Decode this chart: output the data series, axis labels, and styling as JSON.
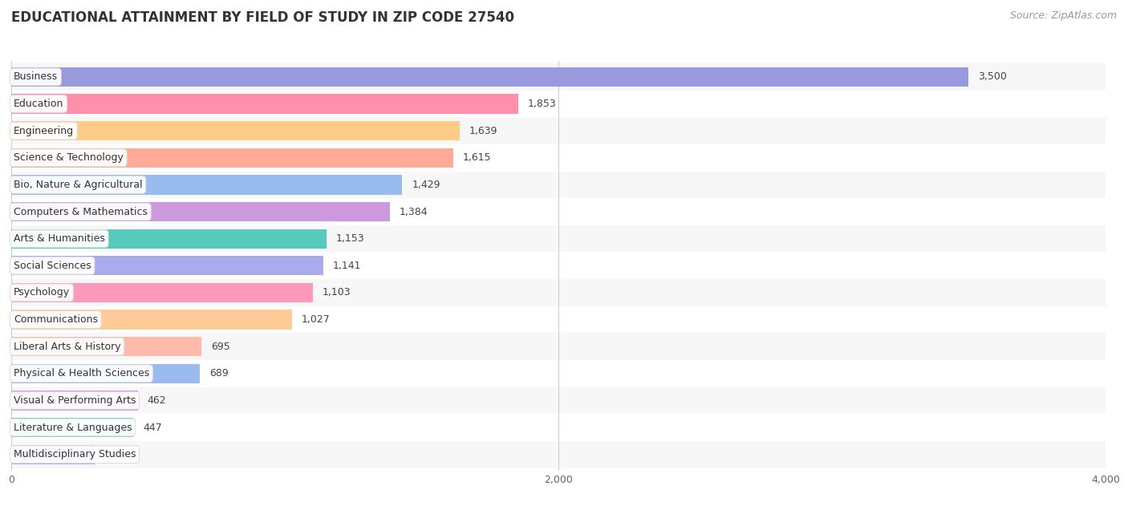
{
  "title": "EDUCATIONAL ATTAINMENT BY FIELD OF STUDY IN ZIP CODE 27540",
  "source": "Source: ZipAtlas.com",
  "categories": [
    "Business",
    "Education",
    "Engineering",
    "Science & Technology",
    "Bio, Nature & Agricultural",
    "Computers & Mathematics",
    "Arts & Humanities",
    "Social Sciences",
    "Psychology",
    "Communications",
    "Liberal Arts & History",
    "Physical & Health Sciences",
    "Visual & Performing Arts",
    "Literature & Languages",
    "Multidisciplinary Studies"
  ],
  "values": [
    3500,
    1853,
    1639,
    1615,
    1429,
    1384,
    1153,
    1141,
    1103,
    1027,
    695,
    689,
    462,
    447,
    305
  ],
  "bar_colors": [
    "#9999dd",
    "#ff8fab",
    "#ffcc88",
    "#ffaa99",
    "#99bbee",
    "#cc99dd",
    "#55ccbb",
    "#aaaaee",
    "#ff99bb",
    "#ffcc99",
    "#ffbbaa",
    "#99bbee",
    "#cc99dd",
    "#55ccbb",
    "#aaaaee"
  ],
  "xlim": [
    0,
    4000
  ],
  "xticks": [
    0,
    2000,
    4000
  ],
  "background_color": "#ffffff",
  "row_bg_odd": "#f7f7f7",
  "row_bg_even": "#ffffff",
  "title_fontsize": 12,
  "source_fontsize": 9,
  "bar_height": 0.72,
  "value_fontsize": 9,
  "label_fontsize": 9
}
